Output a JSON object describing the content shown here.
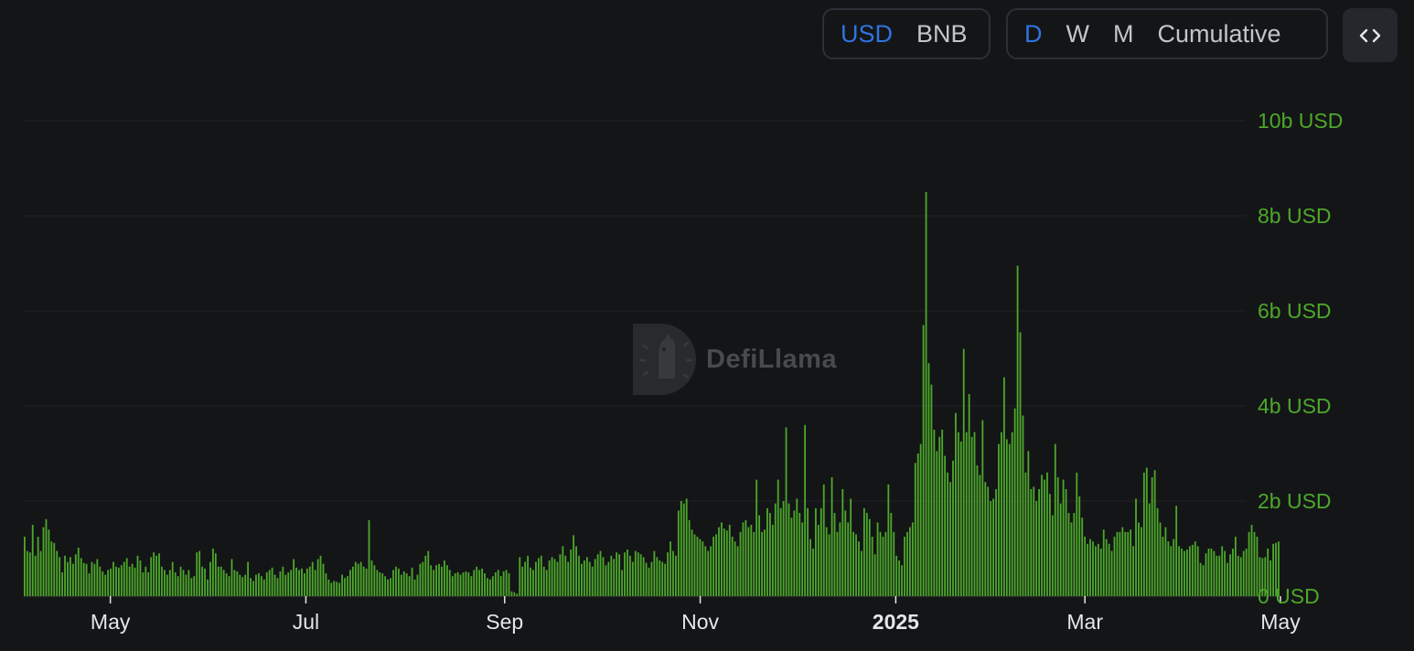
{
  "controls": {
    "currency": {
      "options": [
        "USD",
        "BNB"
      ],
      "selected": "USD"
    },
    "period": {
      "options": [
        "D",
        "W",
        "M",
        "Cumulative"
      ],
      "selected": "D"
    },
    "embed_icon": "code-brackets-icon"
  },
  "watermark": {
    "text": "DefiLlama",
    "icon": "llama-logo-icon"
  },
  "colors": {
    "bar": "#4ca82a",
    "accent": "#2f74e0",
    "background": "#141517"
  },
  "chart_data": {
    "type": "bar",
    "x_start": "2024-04-04",
    "x_end": "2025-05-01",
    "unit": "USD",
    "ylim": [
      0,
      10000000000
    ],
    "yticks": [
      {
        "value": 0,
        "label": "0 USD"
      },
      {
        "value": 2000000000,
        "label": "2b USD"
      },
      {
        "value": 4000000000,
        "label": "4b USD"
      },
      {
        "value": 6000000000,
        "label": "6b USD"
      },
      {
        "value": 8000000000,
        "label": "8b USD"
      },
      {
        "value": 10000000000,
        "label": "10b USD"
      }
    ],
    "xticks": [
      {
        "date": "2024-05-01",
        "label": "May",
        "bold": false
      },
      {
        "date": "2024-07-01",
        "label": "Jul",
        "bold": false
      },
      {
        "date": "2024-09-01",
        "label": "Sep",
        "bold": false
      },
      {
        "date": "2024-11-01",
        "label": "Nov",
        "bold": false
      },
      {
        "date": "2025-01-01",
        "label": "2025",
        "bold": true
      },
      {
        "date": "2025-03-01",
        "label": "Mar",
        "bold": false
      },
      {
        "date": "2025-05-01",
        "label": "May",
        "bold": false
      }
    ],
    "grid": true,
    "daily_values_billions": [
      1.25,
      0.95,
      0.92,
      1.5,
      0.85,
      1.25,
      0.95,
      1.45,
      1.62,
      1.4,
      1.15,
      1.12,
      0.95,
      0.82,
      0.5,
      0.85,
      0.72,
      0.82,
      0.68,
      0.88,
      1.02,
      0.8,
      0.7,
      0.68,
      0.48,
      0.72,
      0.68,
      0.78,
      0.62,
      0.52,
      0.45,
      0.55,
      0.58,
      0.72,
      0.62,
      0.6,
      0.65,
      0.72,
      0.8,
      0.62,
      0.68,
      0.6,
      0.85,
      0.75,
      0.5,
      0.62,
      0.5,
      0.82,
      0.92,
      0.85,
      0.9,
      0.62,
      0.55,
      0.45,
      0.55,
      0.72,
      0.5,
      0.42,
      0.62,
      0.55,
      0.45,
      0.55,
      0.38,
      0.42,
      0.92,
      0.95,
      0.62,
      0.58,
      0.35,
      0.72,
      1.0,
      0.9,
      0.62,
      0.62,
      0.55,
      0.48,
      0.42,
      0.78,
      0.55,
      0.52,
      0.45,
      0.4,
      0.45,
      0.72,
      0.38,
      0.32,
      0.45,
      0.48,
      0.42,
      0.35,
      0.5,
      0.55,
      0.6,
      0.45,
      0.38,
      0.52,
      0.62,
      0.45,
      0.5,
      0.55,
      0.78,
      0.6,
      0.55,
      0.58,
      0.48,
      0.58,
      0.62,
      0.72,
      0.55,
      0.78,
      0.85,
      0.68,
      0.48,
      0.35,
      0.28,
      0.32,
      0.3,
      0.28,
      0.45,
      0.38,
      0.42,
      0.55,
      0.62,
      0.72,
      0.68,
      0.72,
      0.62,
      0.58,
      1.6,
      0.75,
      0.65,
      0.55,
      0.5,
      0.48,
      0.42,
      0.35,
      0.38,
      0.55,
      0.62,
      0.58,
      0.45,
      0.52,
      0.48,
      0.42,
      0.6,
      0.35,
      0.45,
      0.68,
      0.72,
      0.85,
      0.95,
      0.65,
      0.55,
      0.65,
      0.68,
      0.62,
      0.75,
      0.65,
      0.55,
      0.42,
      0.48,
      0.5,
      0.45,
      0.5,
      0.52,
      0.5,
      0.42,
      0.55,
      0.62,
      0.55,
      0.58,
      0.48,
      0.38,
      0.35,
      0.42,
      0.5,
      0.55,
      0.42,
      0.52,
      0.55,
      0.48,
      0.1,
      0.08,
      0.05,
      0.82,
      0.62,
      0.72,
      0.85,
      0.6,
      0.55,
      0.72,
      0.8,
      0.85,
      0.62,
      0.55,
      0.75,
      0.82,
      0.78,
      0.72,
      0.88,
      1.05,
      0.85,
      0.72,
      0.98,
      1.28,
      1.05,
      0.85,
      0.68,
      0.75,
      0.82,
      0.72,
      0.62,
      0.78,
      0.88,
      0.95,
      0.82,
      0.65,
      0.72,
      0.85,
      0.78,
      0.92,
      0.88,
      0.55,
      0.92,
      0.98,
      0.85,
      0.72,
      0.95,
      0.92,
      0.88,
      0.82,
      0.7,
      0.6,
      0.72,
      0.95,
      0.82,
      0.75,
      0.72,
      0.68,
      0.92,
      1.15,
      0.95,
      0.85,
      1.8,
      2.0,
      1.95,
      2.05,
      1.6,
      1.4,
      1.3,
      1.25,
      1.2,
      1.15,
      1.05,
      0.95,
      1.05,
      1.25,
      1.3,
      1.45,
      1.55,
      1.42,
      1.38,
      1.5,
      1.25,
      1.15,
      1.05,
      1.35,
      1.55,
      1.6,
      1.45,
      1.5,
      1.35,
      2.45,
      1.7,
      1.35,
      1.4,
      1.85,
      1.75,
      1.5,
      1.95,
      2.45,
      1.85,
      2.0,
      3.55,
      1.95,
      1.65,
      1.8,
      2.05,
      1.75,
      1.55,
      3.6,
      1.85,
      1.2,
      1.0,
      1.85,
      1.5,
      1.85,
      2.35,
      1.45,
      1.3,
      2.5,
      1.75,
      1.35,
      1.55,
      2.25,
      1.8,
      1.55,
      2.05,
      1.35,
      1.3,
      1.15,
      0.95,
      1.85,
      1.75,
      1.62,
      1.25,
      0.88,
      1.55,
      1.35,
      1.25,
      1.35,
      2.35,
      1.75,
      1.35,
      0.85,
      0.75,
      0.65,
      1.25,
      1.35,
      1.45,
      1.55,
      2.8,
      3.0,
      3.2,
      5.7,
      8.5,
      4.9,
      4.45,
      3.5,
      3.05,
      3.35,
      3.5,
      2.95,
      2.6,
      2.4,
      2.85,
      3.85,
      3.45,
      3.25,
      5.2,
      3.45,
      4.25,
      3.35,
      3.45,
      2.75,
      2.55,
      3.7,
      2.4,
      2.3,
      2.0,
      2.05,
      2.25,
      3.2,
      3.45,
      4.6,
      3.3,
      3.2,
      3.45,
      3.95,
      6.95,
      5.55,
      3.8,
      2.6,
      3.05,
      2.25,
      2.3,
      2.0,
      2.25,
      2.55,
      2.45,
      2.6,
      2.15,
      1.7,
      3.2,
      2.5,
      1.95,
      2.45,
      2.25,
      1.75,
      1.55,
      1.75,
      2.6,
      2.1,
      1.65,
      1.25,
      1.1,
      1.2,
      1.15,
      1.05,
      1.1,
      1.0,
      1.4,
      1.2,
      1.1,
      0.95,
      1.25,
      1.35,
      1.35,
      1.45,
      1.35,
      1.35,
      1.4,
      1.05,
      2.05,
      1.55,
      1.45,
      2.6,
      2.7,
      1.95,
      2.5,
      2.65,
      1.85,
      1.55,
      1.25,
      1.45,
      1.15,
      1.05,
      1.2,
      1.9,
      1.05,
      1.0,
      0.95,
      0.98,
      1.05,
      1.08,
      1.15,
      1.05,
      0.7,
      0.65,
      0.9,
      1.0,
      1.0,
      0.95,
      0.85,
      0.85,
      1.05,
      0.95,
      0.7,
      0.88,
      1.0,
      1.25,
      0.85,
      0.82,
      0.95,
      1.0,
      1.35,
      1.5,
      1.35,
      1.25,
      0.82,
      0.8,
      0.82,
      1.0,
      0.75,
      1.1,
      1.12,
      1.15
    ]
  }
}
